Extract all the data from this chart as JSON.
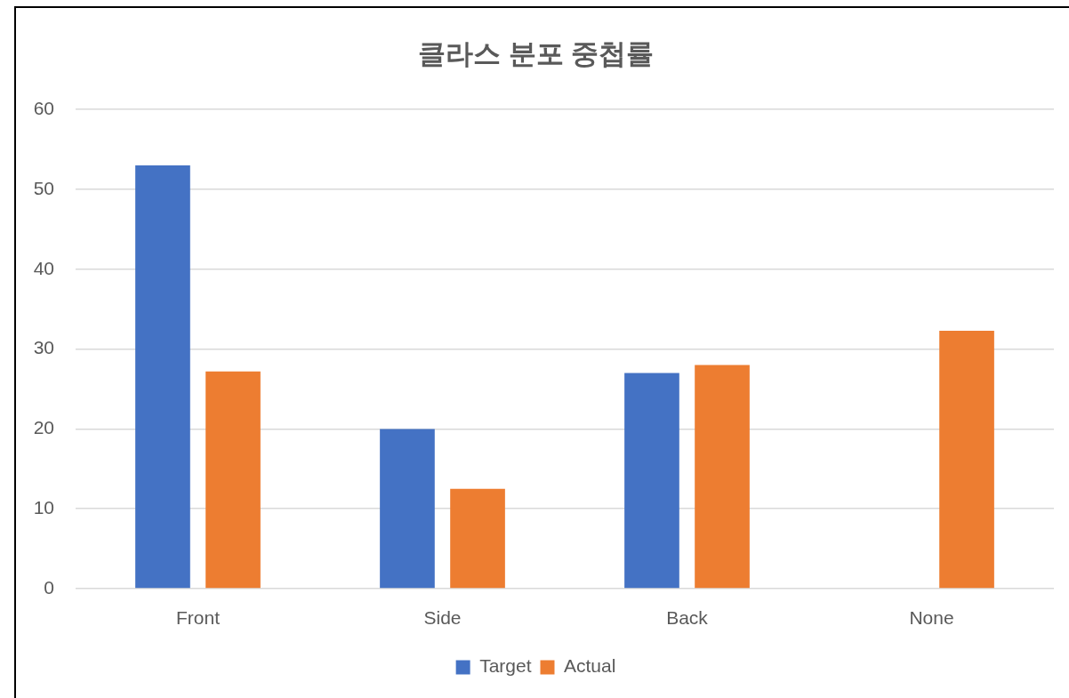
{
  "chart_data": {
    "type": "bar",
    "title": "클라스 분포 중첩률",
    "categories": [
      "Front",
      "Side",
      "Back",
      "None"
    ],
    "series": [
      {
        "name": "Target",
        "color": "#4472c4",
        "values": [
          53,
          20,
          27,
          null
        ]
      },
      {
        "name": "Actual",
        "color": "#ed7d31",
        "values": [
          27.2,
          12.5,
          28,
          32.3
        ]
      }
    ],
    "ylim": [
      0,
      60
    ],
    "yticks": [
      0,
      10,
      20,
      30,
      40,
      50,
      60
    ],
    "grid": "y",
    "legend": "bottom"
  }
}
